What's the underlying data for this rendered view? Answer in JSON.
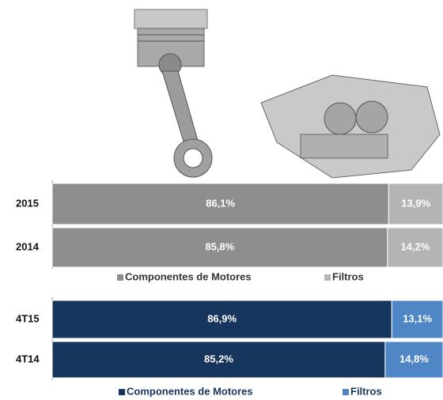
{
  "chart_data": [
    {
      "type": "bar",
      "orientation": "horizontal",
      "stacked": true,
      "categories": [
        "2015",
        "2014"
      ],
      "series": [
        {
          "name": "Componentes de Motores",
          "color": "#8e8e8e",
          "values": [
            86.1,
            85.8
          ],
          "value_labels": [
            "86,1%",
            "85,8%"
          ]
        },
        {
          "name": "Filtros",
          "color": "#b4b4b4",
          "values": [
            13.9,
            14.2
          ],
          "value_labels": [
            "13,9%",
            "14,2%"
          ]
        }
      ]
    },
    {
      "type": "bar",
      "orientation": "horizontal",
      "stacked": true,
      "categories": [
        "4T15",
        "4T14"
      ],
      "series": [
        {
          "name": "Componentes de Motores",
          "color": "#17365d",
          "values": [
            86.9,
            85.2
          ],
          "value_labels": [
            "86,9%",
            "85,2%"
          ]
        },
        {
          "name": "Filtros",
          "color": "#4f86c6",
          "values": [
            13.1,
            14.8
          ],
          "value_labels": [
            "13,1%",
            "14,8%"
          ]
        }
      ]
    }
  ]
}
